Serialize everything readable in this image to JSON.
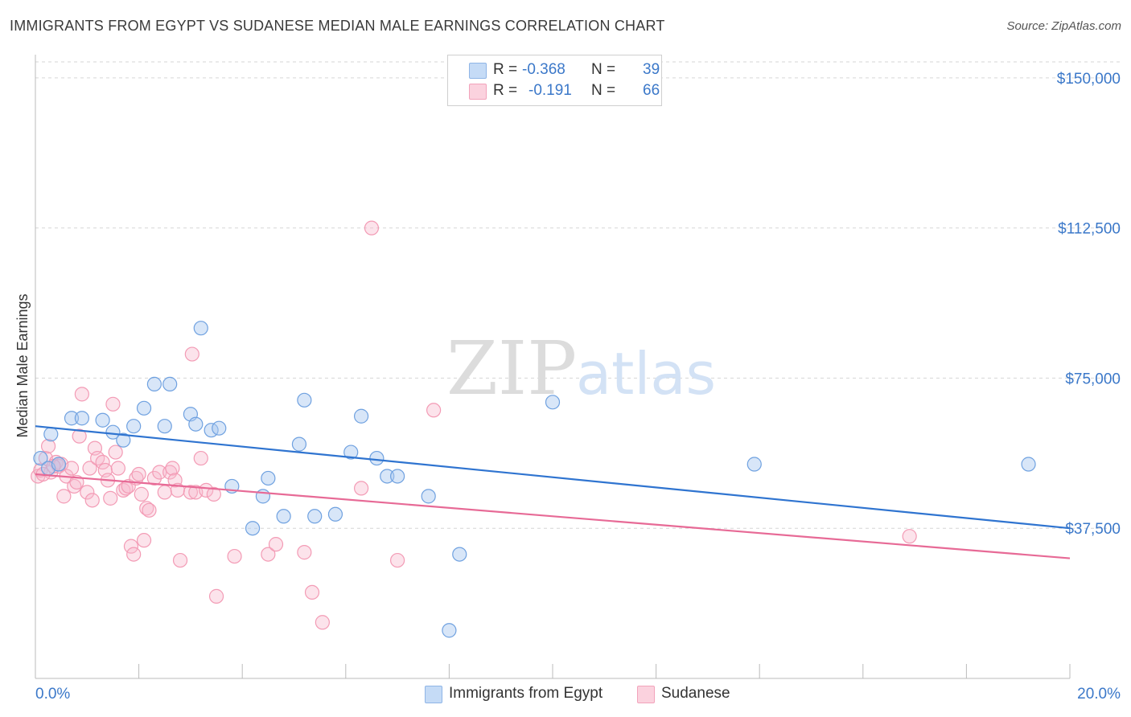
{
  "title": "IMMIGRANTS FROM EGYPT VS SUDANESE MEDIAN MALE EARNINGS CORRELATION CHART",
  "source": "Source: ZipAtlas.com",
  "watermark": {
    "zip": "ZIP",
    "atlas": "atlas"
  },
  "legend": {
    "rows": [
      {
        "r_label": "R =",
        "r_value": "-0.368",
        "n_label": "N =",
        "n_value": "39",
        "color": "#a9c8f0"
      },
      {
        "r_label": "R =",
        "r_value": "-0.191",
        "n_label": "N =",
        "n_value": "66",
        "color": "#f7b9cc"
      }
    ]
  },
  "bottom_legend": [
    "Immigrants from Egypt",
    "Sudanese"
  ],
  "chart_data": {
    "type": "scatter",
    "title": "IMMIGRANTS FROM EGYPT VS SUDANESE MEDIAN MALE EARNINGS CORRELATION CHART",
    "xlabel": "",
    "ylabel": "Median Male Earnings",
    "xlim": [
      0,
      20
    ],
    "ylim": [
      0,
      157000
    ],
    "x_tick_labels": [
      "0.0%",
      "20.0%"
    ],
    "y_ticks": [
      37500,
      75000,
      112500,
      150000
    ],
    "y_tick_labels": [
      "$37,500",
      "$75,000",
      "$112,500",
      "$150,000"
    ],
    "grid": "horizontal dashed",
    "legend_position": "top-center",
    "series": [
      {
        "name": "Immigrants from Egypt",
        "color": "#6fa1e0",
        "line_color": "#2f74d0",
        "trend": {
          "x": [
            0,
            20
          ],
          "y": [
            63000,
            37500
          ]
        },
        "points": [
          [
            0.3,
            61000
          ],
          [
            0.7,
            65000
          ],
          [
            0.9,
            65000
          ],
          [
            1.3,
            64500
          ],
          [
            1.5,
            61500
          ],
          [
            1.7,
            59500
          ],
          [
            1.9,
            63000
          ],
          [
            2.1,
            67500
          ],
          [
            2.3,
            73500
          ],
          [
            2.5,
            63000
          ],
          [
            2.6,
            73500
          ],
          [
            3.0,
            66000
          ],
          [
            3.1,
            63500
          ],
          [
            3.2,
            87500
          ],
          [
            3.4,
            62000
          ],
          [
            3.55,
            62500
          ],
          [
            3.8,
            48000
          ],
          [
            4.2,
            37500
          ],
          [
            4.4,
            45500
          ],
          [
            4.5,
            50000
          ],
          [
            4.8,
            40500
          ],
          [
            5.1,
            58500
          ],
          [
            5.2,
            69500
          ],
          [
            5.4,
            40500
          ],
          [
            5.8,
            41000
          ],
          [
            6.1,
            56500
          ],
          [
            6.3,
            65500
          ],
          [
            6.6,
            55000
          ],
          [
            6.8,
            50500
          ],
          [
            7.0,
            50500
          ],
          [
            7.6,
            45500
          ],
          [
            8.0,
            12000
          ],
          [
            8.2,
            31000
          ],
          [
            10.0,
            69000
          ],
          [
            13.9,
            53500
          ],
          [
            19.2,
            53500
          ],
          [
            0.1,
            55000
          ],
          [
            0.25,
            52500
          ],
          [
            0.45,
            53500
          ]
        ]
      },
      {
        "name": "Sudanese",
        "color": "#f39bb5",
        "line_color": "#e76a96",
        "trend": {
          "x": [
            0,
            20
          ],
          "y": [
            51000,
            30000
          ]
        },
        "points": [
          [
            0.05,
            50500
          ],
          [
            0.1,
            52000
          ],
          [
            0.2,
            55000
          ],
          [
            0.25,
            58000
          ],
          [
            0.3,
            51500
          ],
          [
            0.4,
            54000
          ],
          [
            0.45,
            53000
          ],
          [
            0.5,
            53500
          ],
          [
            0.55,
            45500
          ],
          [
            0.6,
            50500
          ],
          [
            0.7,
            52500
          ],
          [
            0.75,
            48000
          ],
          [
            0.8,
            49000
          ],
          [
            0.85,
            60500
          ],
          [
            0.9,
            71000
          ],
          [
            1.0,
            46500
          ],
          [
            1.05,
            52500
          ],
          [
            1.1,
            44500
          ],
          [
            1.15,
            57500
          ],
          [
            1.2,
            55000
          ],
          [
            1.3,
            54000
          ],
          [
            1.35,
            52000
          ],
          [
            1.4,
            49500
          ],
          [
            1.45,
            45000
          ],
          [
            1.5,
            68500
          ],
          [
            1.55,
            56500
          ],
          [
            1.6,
            52500
          ],
          [
            1.7,
            47000
          ],
          [
            1.75,
            47500
          ],
          [
            1.8,
            48000
          ],
          [
            1.85,
            33000
          ],
          [
            1.9,
            31000
          ],
          [
            1.95,
            50000
          ],
          [
            2.0,
            51000
          ],
          [
            2.05,
            46000
          ],
          [
            2.1,
            34500
          ],
          [
            2.15,
            42500
          ],
          [
            2.2,
            42000
          ],
          [
            2.3,
            50000
          ],
          [
            2.4,
            51500
          ],
          [
            2.5,
            46500
          ],
          [
            2.6,
            51500
          ],
          [
            2.65,
            52500
          ],
          [
            2.7,
            49500
          ],
          [
            2.75,
            47000
          ],
          [
            2.8,
            29500
          ],
          [
            3.0,
            46500
          ],
          [
            3.03,
            81000
          ],
          [
            3.1,
            46500
          ],
          [
            3.2,
            55000
          ],
          [
            3.3,
            47000
          ],
          [
            3.45,
            46000
          ],
          [
            3.5,
            20500
          ],
          [
            3.85,
            30500
          ],
          [
            4.5,
            31000
          ],
          [
            4.65,
            33500
          ],
          [
            5.2,
            31500
          ],
          [
            5.35,
            21500
          ],
          [
            5.55,
            14000
          ],
          [
            6.3,
            47500
          ],
          [
            6.5,
            112500
          ],
          [
            7.0,
            29500
          ],
          [
            7.7,
            67000
          ],
          [
            16.9,
            35500
          ],
          [
            0.15,
            51000
          ],
          [
            0.35,
            53000
          ]
        ]
      }
    ]
  }
}
